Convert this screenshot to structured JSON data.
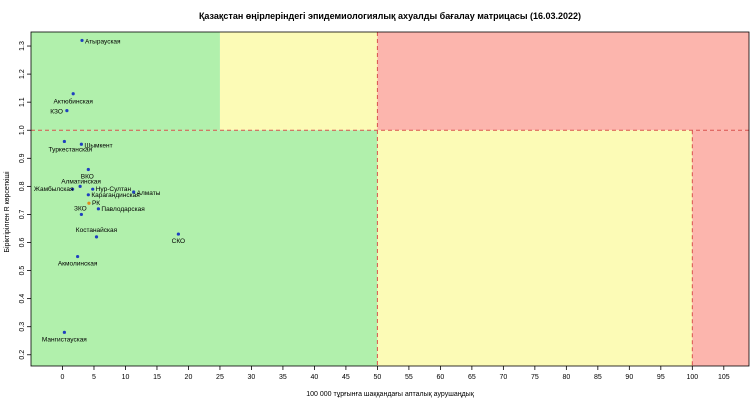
{
  "chart_data": {
    "type": "scatter",
    "title": "Қазақстан өңірлеріндегі эпидемиологиялық ахуалды бағалау матрицасы  (16.03.2022)",
    "xlabel": "100 000 тұрғынға шаққандағы апталық аурушаңдық",
    "ylabel": "Біріктірілген R көрсеткіші",
    "xlim": [
      -5,
      109
    ],
    "ylim": [
      0.16,
      1.35
    ],
    "xticks": [
      0,
      5,
      10,
      15,
      20,
      25,
      30,
      35,
      40,
      45,
      50,
      55,
      60,
      65,
      70,
      75,
      80,
      85,
      90,
      95,
      100,
      105
    ],
    "yticks": [
      0.2,
      0.3,
      0.4,
      0.5,
      0.6,
      0.7,
      0.8,
      0.9,
      1.0,
      1.1,
      1.2,
      1.3
    ],
    "grid": false,
    "zones": [
      {
        "x": [
          -5,
          25
        ],
        "y": [
          1.0,
          1.35
        ],
        "color": "#b1f0ac"
      },
      {
        "x": [
          25,
          50
        ],
        "y": [
          1.0,
          1.35
        ],
        "color": "#fcfbb6"
      },
      {
        "x": [
          50,
          109
        ],
        "y": [
          1.0,
          1.35
        ],
        "color": "#fcb5ad"
      },
      {
        "x": [
          -5,
          50
        ],
        "y": [
          0.16,
          1.0
        ],
        "color": "#b1f0ac"
      },
      {
        "x": [
          50,
          100
        ],
        "y": [
          0.16,
          1.0
        ],
        "color": "#fcfbb6"
      },
      {
        "x": [
          100,
          109
        ],
        "y": [
          0.16,
          1.0
        ],
        "color": "#fcb5ad"
      }
    ],
    "thresholds": {
      "x": [
        50,
        100
      ],
      "y": [
        1.0
      ],
      "color": "#d9534f"
    },
    "points": [
      {
        "label": "Атырауская",
        "x": 3.1,
        "y": 1.32,
        "color": "#1f3fbf"
      },
      {
        "label": "Актюбинская",
        "x": 1.7,
        "y": 1.13,
        "color": "#1f3fbf"
      },
      {
        "label": "КЗО",
        "x": 0.7,
        "y": 1.07,
        "color": "#1f3fbf"
      },
      {
        "label": "Туркестанская",
        "x": 0.3,
        "y": 0.96,
        "color": "#1f3fbf"
      },
      {
        "label": "Шымкент",
        "x": 3.0,
        "y": 0.95,
        "color": "#1f3fbf"
      },
      {
        "label": "ВКО",
        "x": 4.1,
        "y": 0.86,
        "color": "#1f3fbf"
      },
      {
        "label": "Алматинская",
        "x": 2.8,
        "y": 0.8,
        "color": "#1f3fbf"
      },
      {
        "label": "Жамбылская",
        "x": 1.6,
        "y": 0.79,
        "color": "#1f3fbf"
      },
      {
        "label": "Нур-Султан",
        "x": 4.8,
        "y": 0.79,
        "color": "#1f3fbf"
      },
      {
        "label": "Алматы",
        "x": 11.3,
        "y": 0.78,
        "color": "#1f3fbf"
      },
      {
        "label": "Карагандинская",
        "x": 4.1,
        "y": 0.77,
        "color": "#1f3fbf"
      },
      {
        "label": "РК",
        "x": 4.2,
        "y": 0.74,
        "color": "#e08a1c"
      },
      {
        "label": "Павлодарская",
        "x": 5.7,
        "y": 0.72,
        "color": "#1f3fbf"
      },
      {
        "label": "ЗКО",
        "x": 3.0,
        "y": 0.7,
        "color": "#1f3fbf"
      },
      {
        "label": "Костанайская",
        "x": 5.4,
        "y": 0.62,
        "color": "#1f3fbf"
      },
      {
        "label": "СКО",
        "x": 18.4,
        "y": 0.63,
        "color": "#1f3fbf"
      },
      {
        "label": "Акмолинская",
        "x": 2.4,
        "y": 0.55,
        "color": "#1f3fbf"
      },
      {
        "label": "Мангистауская",
        "x": 0.3,
        "y": 0.28,
        "color": "#1f3fbf"
      }
    ]
  }
}
